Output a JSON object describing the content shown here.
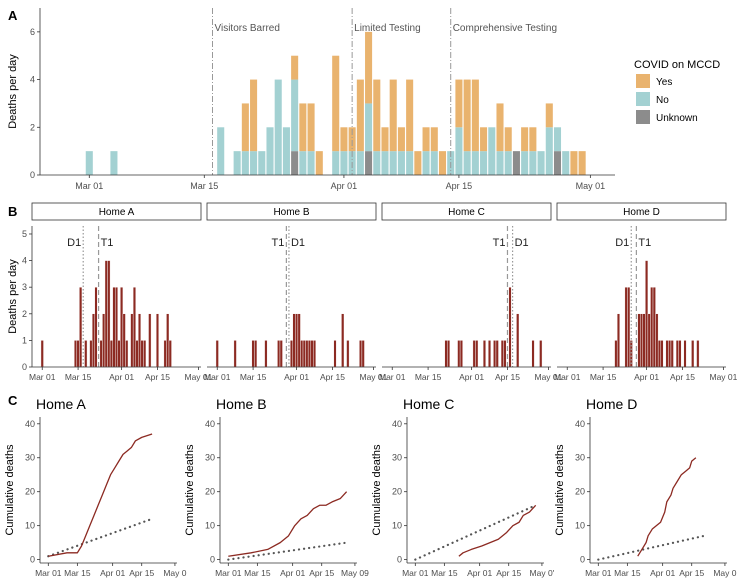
{
  "chart_data": [
    {
      "panel": "A",
      "type": "bar",
      "stacked": true,
      "ylabel": "Deaths per day",
      "xticks": [
        "Mar 01",
        "Mar 15",
        "Apr 01",
        "Apr 15",
        "May 01"
      ],
      "xtick_days": [
        1,
        15,
        32,
        46,
        62
      ],
      "yticks": [
        0,
        2,
        4,
        6
      ],
      "ylim": [
        0,
        7
      ],
      "xlim": [
        -5,
        65
      ],
      "annotations": [
        {
          "label": "Visitors Barred",
          "day": 16
        },
        {
          "label": "Limited Testing",
          "day": 33
        },
        {
          "label": "Comprehensive Testing",
          "day": 45
        }
      ],
      "legend": {
        "title": "COVID on MCCD",
        "entries": [
          {
            "label": "Yes",
            "color": "#E9B36E"
          },
          {
            "label": "No",
            "color": "#A3D1D2"
          },
          {
            "label": "Unknown",
            "color": "#8C8C8C"
          }
        ]
      },
      "days": [
        {
          "d": 1,
          "no": 1
        },
        {
          "d": 4,
          "no": 1
        },
        {
          "d": 17,
          "no": 2
        },
        {
          "d": 19,
          "no": 1
        },
        {
          "d": 20,
          "no": 1,
          "yes": 2
        },
        {
          "d": 21,
          "no": 1,
          "yes": 3
        },
        {
          "d": 22,
          "no": 1
        },
        {
          "d": 23,
          "no": 2
        },
        {
          "d": 24,
          "no": 4
        },
        {
          "d": 25,
          "no": 2
        },
        {
          "d": 26,
          "unk": 1,
          "no": 3,
          "yes": 1
        },
        {
          "d": 27,
          "no": 1,
          "yes": 2
        },
        {
          "d": 28,
          "no": 1,
          "yes": 2
        },
        {
          "d": 29,
          "yes": 1
        },
        {
          "d": 31,
          "no": 1,
          "yes": 4
        },
        {
          "d": 32,
          "no": 1,
          "yes": 1
        },
        {
          "d": 33,
          "no": 1,
          "yes": 1
        },
        {
          "d": 34,
          "no": 1,
          "yes": 3
        },
        {
          "d": 35,
          "unk": 1,
          "no": 2,
          "yes": 3
        },
        {
          "d": 36,
          "no": 1,
          "yes": 3
        },
        {
          "d": 37,
          "no": 1,
          "yes": 1
        },
        {
          "d": 38,
          "no": 1,
          "yes": 3
        },
        {
          "d": 39,
          "no": 1,
          "yes": 1
        },
        {
          "d": 40,
          "no": 1,
          "yes": 3
        },
        {
          "d": 41,
          "yes": 1
        },
        {
          "d": 42,
          "no": 1,
          "yes": 1
        },
        {
          "d": 43,
          "no": 1,
          "yes": 1
        },
        {
          "d": 44,
          "yes": 1
        },
        {
          "d": 45,
          "no": 1
        },
        {
          "d": 46,
          "no": 2,
          "yes": 2
        },
        {
          "d": 47,
          "no": 1,
          "yes": 3
        },
        {
          "d": 48,
          "no": 1,
          "yes": 3
        },
        {
          "d": 49,
          "no": 1,
          "yes": 1
        },
        {
          "d": 50,
          "no": 2
        },
        {
          "d": 51,
          "no": 1,
          "yes": 2
        },
        {
          "d": 52,
          "no": 1,
          "yes": 1
        },
        {
          "d": 53,
          "unk": 1
        },
        {
          "d": 54,
          "no": 1,
          "yes": 1
        },
        {
          "d": 55,
          "no": 1,
          "yes": 1
        },
        {
          "d": 56,
          "no": 1
        },
        {
          "d": 57,
          "no": 2,
          "yes": 1
        },
        {
          "d": 58,
          "unk": 1,
          "no": 1
        },
        {
          "d": 59,
          "no": 1
        },
        {
          "d": 60,
          "yes": 1
        },
        {
          "d": 61,
          "yes": 1
        }
      ]
    },
    {
      "panel": "B",
      "type": "bar",
      "ylabel": "Deaths per day",
      "color": "#8C2A22",
      "xticks": [
        "Mar 01",
        "Mar 15",
        "Apr 01",
        "Apr 15",
        "May 01"
      ],
      "xtick_days": [
        1,
        15,
        32,
        46,
        62
      ],
      "yticks": [
        0,
        1,
        2,
        3,
        4,
        5
      ],
      "ylim": [
        0,
        5.3
      ],
      "xlim": [
        -3,
        63
      ],
      "facets": [
        {
          "name": "Home A",
          "d1": 17,
          "t1": 23,
          "d1_label": "D1",
          "t1_label": "T1",
          "days": [
            {
              "d": 1,
              "v": 1
            },
            {
              "d": 14,
              "v": 1
            },
            {
              "d": 15,
              "v": 1
            },
            {
              "d": 16,
              "v": 3
            },
            {
              "d": 18,
              "v": 1
            },
            {
              "d": 20,
              "v": 1
            },
            {
              "d": 21,
              "v": 2
            },
            {
              "d": 22,
              "v": 3
            },
            {
              "d": 24,
              "v": 1
            },
            {
              "d": 25,
              "v": 2
            },
            {
              "d": 26,
              "v": 4
            },
            {
              "d": 27,
              "v": 4
            },
            {
              "d": 28,
              "v": 1
            },
            {
              "d": 29,
              "v": 3
            },
            {
              "d": 30,
              "v": 3
            },
            {
              "d": 31,
              "v": 1
            },
            {
              "d": 32,
              "v": 3
            },
            {
              "d": 33,
              "v": 2
            },
            {
              "d": 34,
              "v": 1
            },
            {
              "d": 36,
              "v": 2
            },
            {
              "d": 37,
              "v": 3
            },
            {
              "d": 38,
              "v": 1
            },
            {
              "d": 39,
              "v": 2
            },
            {
              "d": 40,
              "v": 1
            },
            {
              "d": 41,
              "v": 1
            },
            {
              "d": 43,
              "v": 2
            },
            {
              "d": 46,
              "v": 2
            },
            {
              "d": 49,
              "v": 1
            },
            {
              "d": 50,
              "v": 2
            },
            {
              "d": 51,
              "v": 1
            }
          ]
        },
        {
          "name": "Home B",
          "d1": 29,
          "t1": 28,
          "d1_label": "D1",
          "t1_label": "T1",
          "days": [
            {
              "d": 1,
              "v": 1
            },
            {
              "d": 8,
              "v": 1
            },
            {
              "d": 15,
              "v": 1
            },
            {
              "d": 16,
              "v": 1
            },
            {
              "d": 20,
              "v": 1
            },
            {
              "d": 25,
              "v": 1
            },
            {
              "d": 26,
              "v": 1
            },
            {
              "d": 30,
              "v": 1
            },
            {
              "d": 31,
              "v": 2
            },
            {
              "d": 32,
              "v": 2
            },
            {
              "d": 33,
              "v": 2
            },
            {
              "d": 34,
              "v": 1
            },
            {
              "d": 35,
              "v": 1
            },
            {
              "d": 36,
              "v": 1
            },
            {
              "d": 37,
              "v": 1
            },
            {
              "d": 38,
              "v": 1
            },
            {
              "d": 39,
              "v": 1
            },
            {
              "d": 47,
              "v": 1
            },
            {
              "d": 50,
              "v": 2
            },
            {
              "d": 52,
              "v": 1
            },
            {
              "d": 57,
              "v": 1
            },
            {
              "d": 58,
              "v": 1
            }
          ]
        },
        {
          "name": "Home C",
          "d1": 48,
          "t1": 46,
          "d1_label": "D1",
          "t1_label": "T1",
          "days": [
            {
              "d": 22,
              "v": 1
            },
            {
              "d": 23,
              "v": 1
            },
            {
              "d": 27,
              "v": 1
            },
            {
              "d": 28,
              "v": 1
            },
            {
              "d": 33,
              "v": 1
            },
            {
              "d": 34,
              "v": 1
            },
            {
              "d": 37,
              "v": 1
            },
            {
              "d": 39,
              "v": 1
            },
            {
              "d": 41,
              "v": 1
            },
            {
              "d": 42,
              "v": 1
            },
            {
              "d": 44,
              "v": 1
            },
            {
              "d": 45,
              "v": 1
            },
            {
              "d": 47,
              "v": 3
            },
            {
              "d": 50,
              "v": 2
            },
            {
              "d": 56,
              "v": 1
            },
            {
              "d": 59,
              "v": 1
            }
          ]
        },
        {
          "name": "Home D",
          "d1": 26,
          "t1": 28,
          "d1_label": "D1",
          "t1_label": "T1",
          "days": [
            {
              "d": 20,
              "v": 1
            },
            {
              "d": 21,
              "v": 2
            },
            {
              "d": 24,
              "v": 3
            },
            {
              "d": 25,
              "v": 3
            },
            {
              "d": 26,
              "v": 1
            },
            {
              "d": 29,
              "v": 2
            },
            {
              "d": 30,
              "v": 2
            },
            {
              "d": 31,
              "v": 2
            },
            {
              "d": 32,
              "v": 4
            },
            {
              "d": 33,
              "v": 2
            },
            {
              "d": 34,
              "v": 3
            },
            {
              "d": 35,
              "v": 3
            },
            {
              "d": 36,
              "v": 2
            },
            {
              "d": 37,
              "v": 1
            },
            {
              "d": 38,
              "v": 1
            },
            {
              "d": 40,
              "v": 1
            },
            {
              "d": 41,
              "v": 1
            },
            {
              "d": 42,
              "v": 1
            },
            {
              "d": 44,
              "v": 1
            },
            {
              "d": 45,
              "v": 1
            },
            {
              "d": 47,
              "v": 1
            },
            {
              "d": 50,
              "v": 1
            },
            {
              "d": 52,
              "v": 1
            }
          ]
        }
      ]
    },
    {
      "panel": "C",
      "type": "line",
      "ylabel": "Cumulative deaths",
      "line_color": "#8C2A22",
      "dot_color": "#555555",
      "yticks": [
        0,
        10,
        20,
        30,
        40
      ],
      "ylim": [
        -1,
        42
      ],
      "xlim": [
        -3,
        63
      ],
      "xtick_days": [
        1,
        15,
        32,
        46,
        62
      ],
      "charts": [
        {
          "title": "Home A",
          "xticks": [
            "Mar 01",
            "Mar 15",
            "Apr 01",
            "Apr 15",
            "May 0"
          ],
          "observed": [
            [
              1,
              1
            ],
            [
              10,
              2
            ],
            [
              15,
              2
            ],
            [
              17,
              4
            ],
            [
              19,
              7
            ],
            [
              21,
              10
            ],
            [
              23,
              13
            ],
            [
              25,
              16
            ],
            [
              27,
              19
            ],
            [
              29,
              22
            ],
            [
              31,
              25
            ],
            [
              33,
              27
            ],
            [
              35,
              29
            ],
            [
              37,
              31
            ],
            [
              39,
              32
            ],
            [
              41,
              33
            ],
            [
              43,
              35
            ],
            [
              46,
              36
            ],
            [
              51,
              37
            ]
          ],
          "expected": [
            [
              1,
              1
            ],
            [
              51,
              12
            ]
          ]
        },
        {
          "title": "Home B",
          "xticks": [
            "Mar 01",
            "Mar 15",
            "Apr 01",
            "Apr 15",
            "May 09"
          ],
          "observed": [
            [
              1,
              1
            ],
            [
              12,
              2
            ],
            [
              20,
              3
            ],
            [
              26,
              5
            ],
            [
              30,
              7
            ],
            [
              33,
              10
            ],
            [
              36,
              12
            ],
            [
              39,
              13
            ],
            [
              42,
              15
            ],
            [
              45,
              16
            ],
            [
              48,
              16
            ],
            [
              51,
              17
            ],
            [
              55,
              18
            ],
            [
              58,
              20
            ]
          ],
          "expected": [
            [
              1,
              0
            ],
            [
              58,
              5
            ]
          ]
        },
        {
          "title": "Home C",
          "xticks": [
            "Mar 01",
            "Mar 15",
            "Apr 01",
            "Apr 15",
            "May 0'"
          ],
          "observed": [
            [
              22,
              1
            ],
            [
              24,
              2
            ],
            [
              28,
              3
            ],
            [
              33,
              4
            ],
            [
              37,
              5
            ],
            [
              41,
              6
            ],
            [
              45,
              8
            ],
            [
              48,
              10
            ],
            [
              51,
              11
            ],
            [
              53,
              13
            ],
            [
              56,
              14
            ],
            [
              59,
              16
            ]
          ],
          "expected": [
            [
              1,
              0
            ],
            [
              59,
              16
            ]
          ]
        },
        {
          "title": "Home D",
          "xticks": [
            "Mar 01",
            "Mar 15",
            "Apr 01",
            "Apr 15",
            "May 0"
          ],
          "observed": [
            [
              20,
              1
            ],
            [
              22,
              3
            ],
            [
              24,
              5
            ],
            [
              25,
              7
            ],
            [
              27,
              9
            ],
            [
              29,
              10
            ],
            [
              31,
              11
            ],
            [
              33,
              14
            ],
            [
              34,
              17
            ],
            [
              36,
              19
            ],
            [
              37,
              21
            ],
            [
              39,
              23
            ],
            [
              41,
              25
            ],
            [
              43,
              26
            ],
            [
              45,
              27
            ],
            [
              46,
              29
            ],
            [
              48,
              30
            ]
          ],
          "expected": [
            [
              1,
              0
            ],
            [
              52,
              7
            ]
          ]
        }
      ]
    }
  ]
}
